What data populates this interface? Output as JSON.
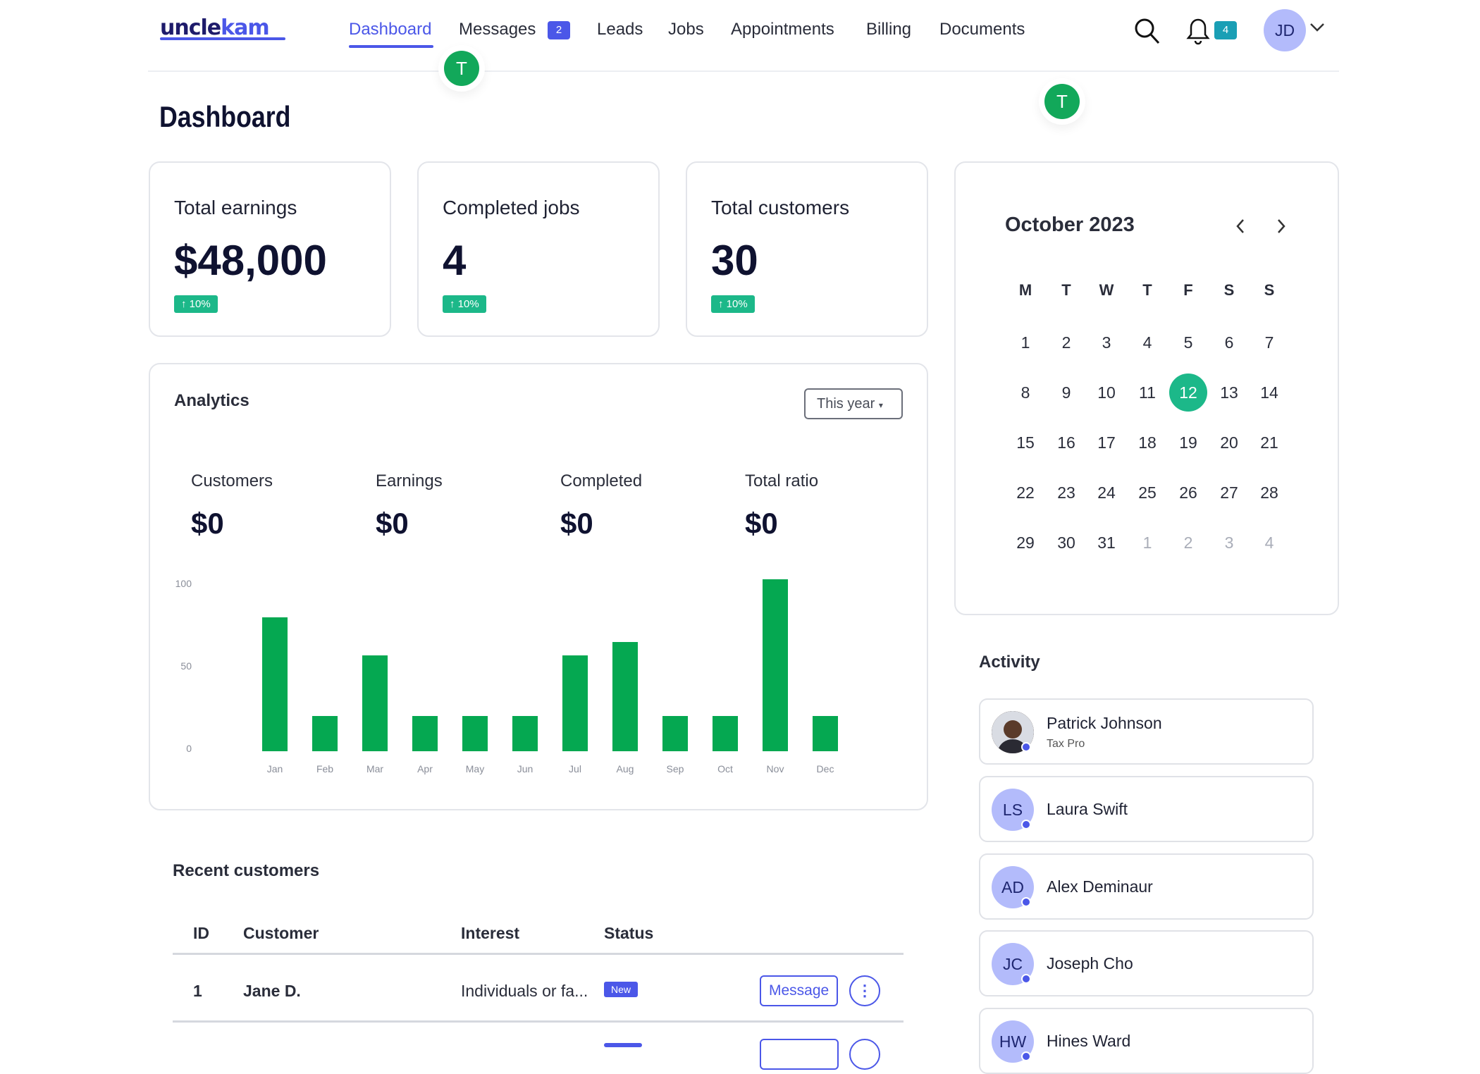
{
  "brand": {
    "logo_a": "uncle",
    "logo_b": "kam"
  },
  "nav": {
    "items": [
      "Dashboard",
      "Messages",
      "Leads",
      "Jobs",
      "Appointments",
      "Billing",
      "Documents"
    ],
    "messages_badge": "2",
    "notifications_badge": "4",
    "avatar": "JD"
  },
  "overlay": {
    "marker": "T"
  },
  "page": {
    "title": "Dashboard"
  },
  "stats": [
    {
      "title": "Total earnings",
      "value": "$48,000",
      "change": "↑ 10%"
    },
    {
      "title": "Completed jobs",
      "value": "4",
      "change": "↑ 10%"
    },
    {
      "title": "Total customers",
      "value": "30",
      "change": "↑ 10%"
    }
  ],
  "calendar": {
    "month": "October 2023",
    "day_names": [
      "M",
      "T",
      "W",
      "T",
      "F",
      "S",
      "S"
    ],
    "weeks": [
      [
        "1",
        "2",
        "3",
        "4",
        "5",
        "6",
        "7"
      ],
      [
        "8",
        "9",
        "10",
        "11",
        "12",
        "13",
        "14"
      ],
      [
        "15",
        "16",
        "17",
        "18",
        "19",
        "20",
        "21"
      ],
      [
        "22",
        "23",
        "24",
        "25",
        "26",
        "27",
        "28"
      ],
      [
        "29",
        "30",
        "31",
        "1",
        "2",
        "3",
        "4"
      ]
    ],
    "selected": "12"
  },
  "analytics": {
    "title": "Analytics",
    "range": "This year",
    "metrics": [
      {
        "label": "Customers",
        "value": "$0"
      },
      {
        "label": "Earnings",
        "value": "$0"
      },
      {
        "label": "Completed",
        "value": "$0"
      },
      {
        "label": "Total ratio",
        "value": "$0"
      }
    ]
  },
  "chart_data": {
    "type": "bar",
    "categories": [
      "Jan",
      "Feb",
      "Mar",
      "Apr",
      "May",
      "Jun",
      "Jul",
      "Aug",
      "Sep",
      "Oct",
      "Nov",
      "Dec"
    ],
    "values": [
      80,
      20,
      57,
      20,
      20,
      20,
      57,
      65,
      20,
      20,
      103,
      20
    ],
    "yticks": [
      "0",
      "50",
      "100"
    ],
    "ylim": [
      0,
      100
    ],
    "color": "#05a851",
    "grid": false
  },
  "recent": {
    "title": "Recent customers",
    "columns": [
      "ID",
      "Customer",
      "Interest",
      "Status"
    ],
    "rows": [
      {
        "id": "1",
        "customer": "Jane D.",
        "interest": "Individuals or fa...",
        "status": "New",
        "action": "Message"
      }
    ]
  },
  "activity": {
    "title": "Activity",
    "items": [
      {
        "initials": "",
        "name": "Patrick Johnson",
        "role": "Tax Pro"
      },
      {
        "initials": "LS",
        "name": "Laura Swift"
      },
      {
        "initials": "AD",
        "name": "Alex Deminaur"
      },
      {
        "initials": "JC",
        "name": "Joseph Cho"
      },
      {
        "initials": "HW",
        "name": "Hines Ward"
      }
    ]
  }
}
